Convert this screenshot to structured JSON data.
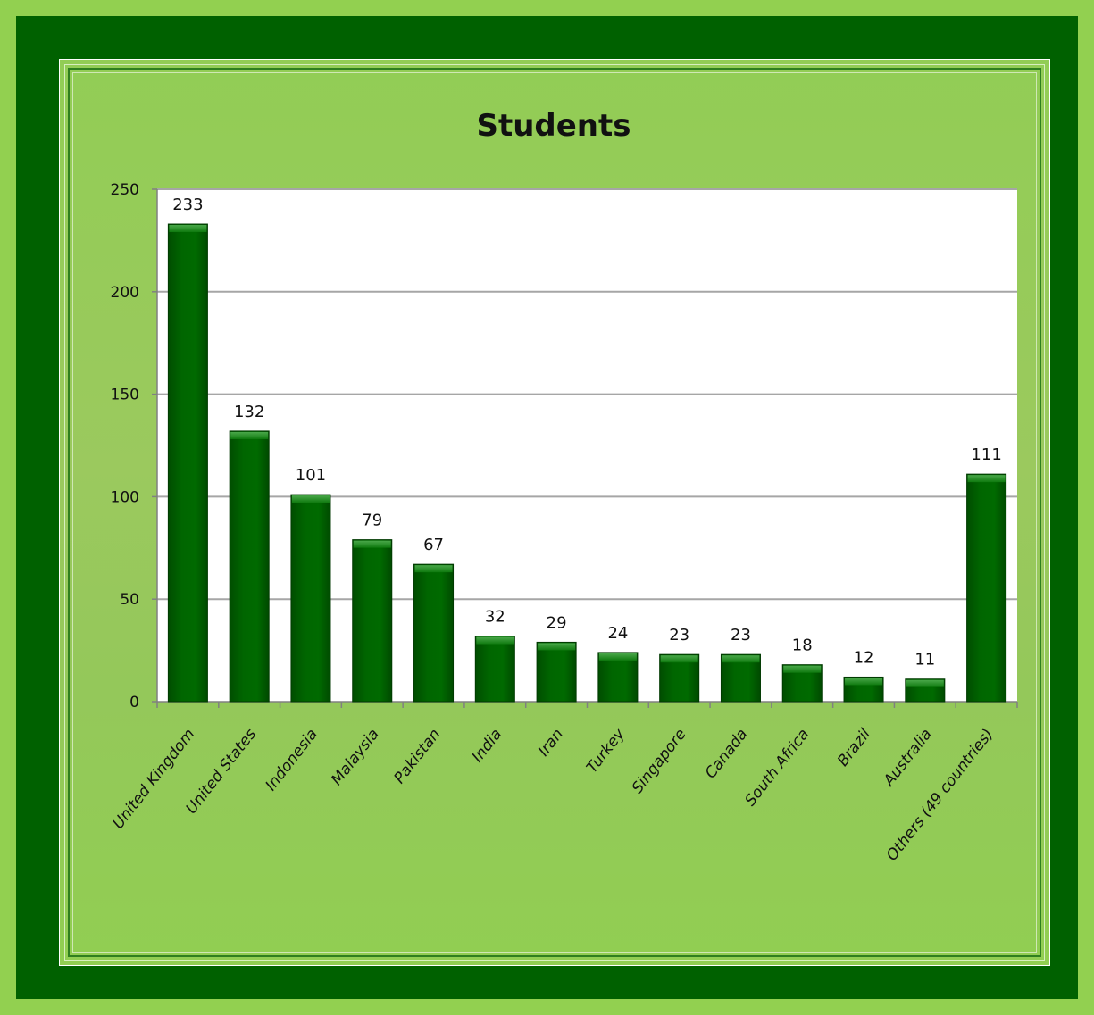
{
  "colors": {
    "page_background": "#92d050",
    "frame_dark_green": "#006100",
    "panel_green": "#9bc95e",
    "plot_background": "#ffffff",
    "bar_fill": "#006600",
    "bar_dark": "#004d00",
    "bar_light": "#2e8b2e",
    "gridline": "#a6a6a6"
  },
  "chart_data": {
    "type": "bar",
    "title": "Students",
    "xlabel": "",
    "ylabel": "",
    "ylim": [
      0,
      250
    ],
    "yticks": [
      0,
      50,
      100,
      150,
      200,
      250
    ],
    "grid": true,
    "legend": "none",
    "categories": [
      "United Kingdom",
      "United States",
      "Indonesia",
      "Malaysia",
      "Pakistan",
      "India",
      "Iran",
      "Turkey",
      "Singapore",
      "Canada",
      "South Africa",
      "Brazil",
      "Australia",
      "Others (49 countries)"
    ],
    "values": [
      233,
      132,
      101,
      79,
      67,
      32,
      29,
      24,
      23,
      23,
      18,
      12,
      11,
      111
    ]
  }
}
